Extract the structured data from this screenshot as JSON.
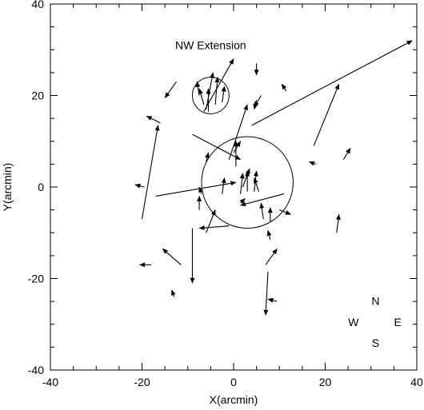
{
  "chart_data": {
    "type": "vector-field",
    "xlabel": "X(arcmin)",
    "ylabel": "Y(arcmin)",
    "xlim": [
      -40,
      40
    ],
    "ylim": [
      -40,
      40
    ],
    "x_ticks": [
      -40,
      -20,
      0,
      20,
      40
    ],
    "y_ticks": [
      -40,
      -20,
      0,
      20,
      40
    ],
    "grid": false,
    "annotations": [
      {
        "text": "NW Extension",
        "x": -5,
        "y": 31
      }
    ],
    "compass": {
      "north": "N",
      "west": "W",
      "east": "E",
      "south": "S",
      "center_x": 31,
      "center_y": -29.5
    },
    "circles": [
      {
        "cx": -5,
        "cy": 20,
        "r": 4
      },
      {
        "cx": 3,
        "cy": 1,
        "r": 10
      }
    ],
    "vectors": [
      {
        "x0": -20,
        "y0": -7,
        "x1": -16.5,
        "y1": 13.5
      },
      {
        "x0": -17,
        "y0": -2,
        "x1": 0.5,
        "y1": 1
      },
      {
        "x0": -9,
        "y0": 11.5,
        "x1": 1.5,
        "y1": 6
      },
      {
        "x0": 11,
        "y0": -1.5,
        "x1": 1.5,
        "y1": -4
      },
      {
        "x0": 4,
        "y0": 13.5,
        "x1": 39,
        "y1": 32
      },
      {
        "x0": 17.5,
        "y0": 9,
        "x1": 23,
        "y1": 22.5
      },
      {
        "x0": -6.5,
        "y0": 16.5,
        "x1": 0,
        "y1": 28
      },
      {
        "x0": -9,
        "y0": -9,
        "x1": -9,
        "y1": -21
      },
      {
        "x0": 7.5,
        "y0": -18.5,
        "x1": 7,
        "y1": -28
      },
      {
        "x0": -1,
        "y0": 6,
        "x1": 3,
        "y1": 18
      },
      {
        "x0": -6,
        "y0": 17,
        "x1": -4.5,
        "y1": 25
      },
      {
        "x0": -5.5,
        "y0": 16.5,
        "x1": -5.5,
        "y1": 21.5
      },
      {
        "x0": -4,
        "y0": 18,
        "x1": -3.5,
        "y1": 24
      },
      {
        "x0": -2.5,
        "y0": 18.5,
        "x1": -2,
        "y1": 22
      },
      {
        "x0": -7.5,
        "y0": 20,
        "x1": -8,
        "y1": 23
      },
      {
        "x0": -6.5,
        "y0": 18,
        "x1": -7.5,
        "y1": 21.5
      },
      {
        "x0": -12.5,
        "y0": 23,
        "x1": -15,
        "y1": 19.5
      },
      {
        "x0": -16,
        "y0": 14,
        "x1": -19,
        "y1": 15.5
      },
      {
        "x0": 5,
        "y0": 27,
        "x1": 5,
        "y1": 24.5
      },
      {
        "x0": 5,
        "y0": 19,
        "x1": 4.5,
        "y1": 17
      },
      {
        "x0": 6,
        "y0": 20,
        "x1": 4.5,
        "y1": 17.5
      },
      {
        "x0": 11.5,
        "y0": 21,
        "x1": 10.5,
        "y1": 22.5
      },
      {
        "x0": 0,
        "y0": 7.5,
        "x1": 1.5,
        "y1": 10
      },
      {
        "x0": -6,
        "y0": 5.5,
        "x1": -5.5,
        "y1": 7.5
      },
      {
        "x0": 0.5,
        "y0": 4.5,
        "x1": 0.5,
        "y1": 10
      },
      {
        "x0": -19.5,
        "y0": 0,
        "x1": -21.5,
        "y1": 0.5
      },
      {
        "x0": 18,
        "y0": 5,
        "x1": 16.5,
        "y1": 5.5
      },
      {
        "x0": 24,
        "y0": 6,
        "x1": 25.5,
        "y1": 8.5
      },
      {
        "x0": 22.5,
        "y0": -10,
        "x1": 23,
        "y1": -6
      },
      {
        "x0": -2.5,
        "y0": -1.5,
        "x1": -2,
        "y1": 2
      },
      {
        "x0": 1.5,
        "y0": -1.5,
        "x1": 2,
        "y1": 3
      },
      {
        "x0": 3,
        "y0": -1,
        "x1": 3,
        "y1": 3.5
      },
      {
        "x0": 4.5,
        "y0": -1,
        "x1": 5,
        "y1": 3.5
      },
      {
        "x0": 2,
        "y0": 0,
        "x1": 3.5,
        "y1": 4
      },
      {
        "x0": 5.5,
        "y0": -1,
        "x1": 4.5,
        "y1": 2
      },
      {
        "x0": 1.5,
        "y0": -3.5,
        "x1": 2.5,
        "y1": -2.5
      },
      {
        "x0": -7,
        "y0": -1.5,
        "x1": -7.5,
        "y1": 0
      },
      {
        "x0": -7.5,
        "y0": -5,
        "x1": -7.5,
        "y1": -2
      },
      {
        "x0": -6,
        "y0": -10,
        "x1": -4,
        "y1": -5
      },
      {
        "x0": -1,
        "y0": -8.5,
        "x1": -7.5,
        "y1": -9
      },
      {
        "x0": 6.5,
        "y0": -7,
        "x1": 6,
        "y1": -3.5
      },
      {
        "x0": 8,
        "y0": -7.5,
        "x1": 8,
        "y1": -4.5
      },
      {
        "x0": 10,
        "y0": -5,
        "x1": 12.5,
        "y1": -6
      },
      {
        "x0": 8,
        "y0": -11.5,
        "x1": 7.5,
        "y1": -9.5
      },
      {
        "x0": 7,
        "y0": -17,
        "x1": 9.5,
        "y1": -13.5
      },
      {
        "x0": -11.5,
        "y0": -17,
        "x1": -15.5,
        "y1": -13.5
      },
      {
        "x0": -18,
        "y0": -17,
        "x1": -20.5,
        "y1": -17
      },
      {
        "x0": -13,
        "y0": -24,
        "x1": -13.5,
        "y1": -22.5
      },
      {
        "x0": 9.5,
        "y0": -25,
        "x1": 7.5,
        "y1": -24.5
      }
    ]
  }
}
